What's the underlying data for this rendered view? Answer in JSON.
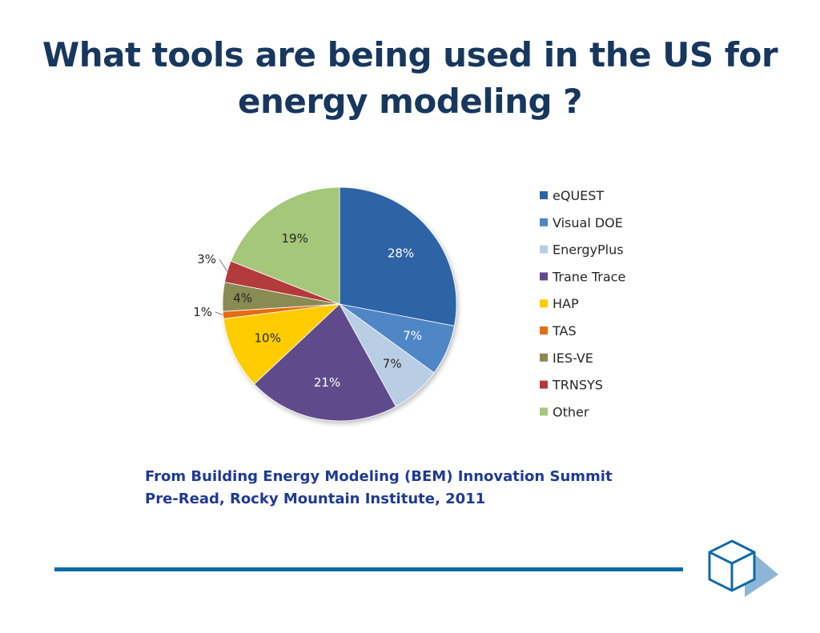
{
  "slide": {
    "title_line1": "What tools are being used in the US for",
    "title_line2": "energy modeling ?",
    "source_line1": "From Building Energy Modeling (BEM) Innovation Summit",
    "source_line2": "Pre-Read, Rocky Mountain Institute, 2011",
    "logo_icon": "cube-logo-icon",
    "accent_color": "#0f6aa8"
  },
  "chart_data": {
    "type": "pie",
    "title": "",
    "legend_position": "right",
    "categories": [
      "eQUEST",
      "Visual DOE",
      "EnergyPlus",
      "Trane Trace",
      "HAP",
      "TAS",
      "IES-VE",
      "TRNSYS",
      "Other"
    ],
    "values": [
      28,
      7,
      7,
      21,
      10,
      1,
      4,
      3,
      19
    ],
    "labels": [
      "28%",
      "7%",
      "7%",
      "21%",
      "10%",
      "1%",
      "4%",
      "3%",
      "19%"
    ],
    "colors": [
      "#2e64a6",
      "#4f86c6",
      "#b9cde5",
      "#5f4b8b",
      "#ffcc00",
      "#e46c0a",
      "#8a8a52",
      "#b33a3a",
      "#a5c77a"
    ],
    "label_colors": [
      "#ffffff",
      "#ffffff",
      "#262626",
      "#ffffff",
      "#262626",
      "#262626",
      "#262626",
      "#262626",
      "#262626"
    ]
  }
}
